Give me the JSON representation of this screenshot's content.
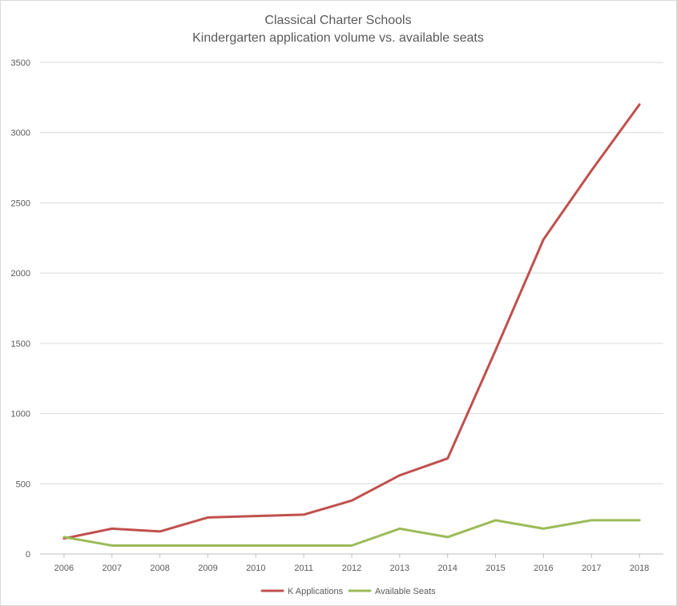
{
  "chart_data": {
    "type": "line",
    "title": "Classical Charter Schools",
    "subtitle": "Kindergarten application volume vs. available seats",
    "xlabel": "",
    "ylabel": "",
    "x": [
      "2006",
      "2007",
      "2008",
      "2009",
      "2010",
      "2011",
      "2012",
      "2013",
      "2014",
      "2015",
      "2016",
      "2017",
      "2018"
    ],
    "ylim": [
      0,
      3500
    ],
    "yticks": [
      0,
      500,
      1000,
      1500,
      2000,
      2500,
      3000,
      3500
    ],
    "grid": true,
    "legend_position": "bottom",
    "series": [
      {
        "name": "K Applications",
        "color": "#c0504d",
        "values": [
          110,
          180,
          160,
          260,
          270,
          280,
          380,
          560,
          680,
          1450,
          2240,
          2730,
          3200
        ]
      },
      {
        "name": "Available Seats",
        "color": "#9bbb59",
        "values": [
          120,
          60,
          60,
          60,
          60,
          60,
          60,
          180,
          120,
          240,
          180,
          240,
          240
        ]
      }
    ]
  }
}
